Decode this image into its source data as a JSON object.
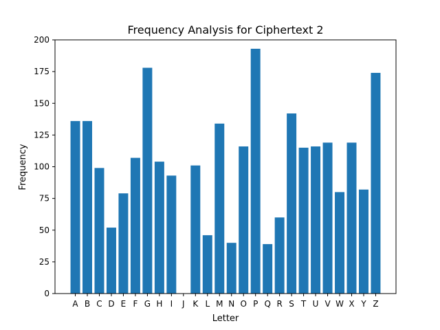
{
  "chart_data": {
    "type": "bar",
    "title": "Frequency Analysis for Ciphertext 2",
    "xlabel": "Letter",
    "ylabel": "Frequency",
    "ylim": [
      0,
      200
    ],
    "yticks": [
      0,
      25,
      50,
      75,
      100,
      125,
      150,
      175,
      200
    ],
    "categories": [
      "A",
      "B",
      "C",
      "D",
      "E",
      "F",
      "G",
      "H",
      "I",
      "J",
      "K",
      "L",
      "M",
      "N",
      "O",
      "P",
      "Q",
      "R",
      "S",
      "T",
      "U",
      "V",
      "W",
      "X",
      "Y",
      "Z"
    ],
    "values": [
      136,
      136,
      99,
      52,
      79,
      107,
      178,
      104,
      93,
      0,
      101,
      46,
      134,
      40,
      116,
      193,
      39,
      60,
      142,
      115,
      116,
      119,
      80,
      119,
      82,
      174
    ],
    "bar_color": "#1f77b4",
    "grid": false,
    "legend": "none"
  }
}
